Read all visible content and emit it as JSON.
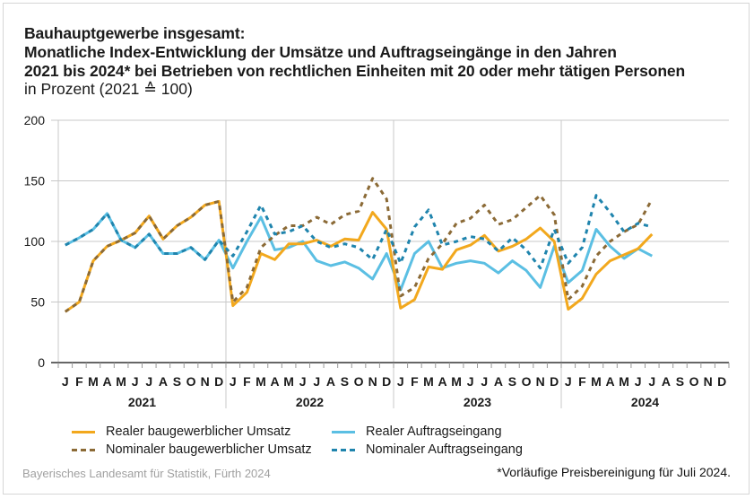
{
  "title": {
    "line1": "Bauhauptgewerbe insgesamt:",
    "line2": "Monatliche Index-Entwicklung der Umsätze und Auftragseingänge in den Jahren",
    "line3": "2021 bis 2024* bei Betrieben von rechtlichen Einheiten mit 20 oder mehr tätigen Personen",
    "subtitle": "in Prozent (2021 ≙ 100)"
  },
  "colors": {
    "real_umsatz": "#f2a81d",
    "nominal_umsatz": "#8b6a36",
    "real_auftrag": "#5bbfe3",
    "nominal_auftrag": "#1f84ad",
    "grid": "#c8c8c8",
    "axis": "#333333"
  },
  "source": "Bayerisches Landesamt für Statistik, Fürth 2024",
  "footnote": "*Vorläufige Preisbereinigung für Juli 2024.",
  "chart_data": {
    "type": "line",
    "title": "Monatliche Index-Entwicklung der Umsätze und Auftragseingänge 2021 bis 2024",
    "xlabel": "",
    "ylabel": "in Prozent (2021 ≙ 100)",
    "ylim": [
      0,
      200
    ],
    "yticks": [
      0,
      50,
      100,
      150,
      200
    ],
    "grid": true,
    "legend_position": "bottom",
    "years": [
      "2021",
      "2022",
      "2023",
      "2024"
    ],
    "month_labels": [
      "J",
      "F",
      "M",
      "A",
      "M",
      "J",
      "J",
      "A",
      "S",
      "O",
      "N",
      "D"
    ],
    "series": [
      {
        "name": "Realer baugewerblicher Umsatz",
        "key": "real_umsatz",
        "style": "solid",
        "values": [
          42,
          50,
          84,
          96,
          101,
          107,
          121,
          102,
          113,
          120,
          130,
          133,
          47,
          58,
          90,
          85,
          98,
          98,
          101,
          96,
          102,
          101,
          124,
          110,
          45,
          52,
          79,
          77,
          93,
          97,
          105,
          92,
          96,
          102,
          111,
          100,
          44,
          53,
          73,
          84,
          89,
          94,
          106
        ]
      },
      {
        "name": "Nominaler baugewerblicher Umsatz",
        "key": "nominal_umsatz",
        "style": "dashed",
        "values": [
          42,
          50,
          84,
          96,
          101,
          107,
          121,
          102,
          113,
          120,
          130,
          133,
          50,
          62,
          95,
          105,
          113,
          113,
          120,
          114,
          122,
          125,
          152,
          135,
          55,
          62,
          86,
          98,
          115,
          119,
          130,
          114,
          118,
          128,
          138,
          122,
          52,
          63,
          88,
          100,
          108,
          114,
          135
        ]
      },
      {
        "name": "Realer Auftragseingang",
        "key": "real_auftrag",
        "style": "solid",
        "values": [
          97,
          103,
          110,
          123,
          101,
          95,
          106,
          90,
          90,
          95,
          85,
          101,
          78,
          100,
          120,
          93,
          95,
          100,
          84,
          80,
          83,
          78,
          69,
          90,
          60,
          90,
          100,
          78,
          82,
          84,
          82,
          74,
          84,
          76,
          62,
          96,
          66,
          76,
          110,
          96,
          86,
          94,
          88
        ]
      },
      {
        "name": "Nominaler Auftragseingang",
        "key": "nominal_auftrag",
        "style": "dashed",
        "values": [
          97,
          103,
          110,
          123,
          101,
          95,
          106,
          90,
          90,
          95,
          85,
          101,
          88,
          108,
          130,
          106,
          108,
          113,
          100,
          95,
          98,
          95,
          85,
          110,
          82,
          112,
          126,
          97,
          100,
          104,
          102,
          92,
          103,
          93,
          78,
          110,
          82,
          95,
          138,
          124,
          108,
          115,
          112
        ]
      }
    ]
  },
  "legend": [
    {
      "label": "Realer baugewerblicher Umsatz",
      "key": "real_umsatz",
      "style": "solid"
    },
    {
      "label": "Realer Auftragseingang",
      "key": "real_auftrag",
      "style": "solid"
    },
    {
      "label": "Nominaler baugewerblicher Umsatz",
      "key": "nominal_umsatz",
      "style": "dashed"
    },
    {
      "label": "Nominaler Auftragseingang",
      "key": "nominal_auftrag",
      "style": "dashed"
    }
  ]
}
